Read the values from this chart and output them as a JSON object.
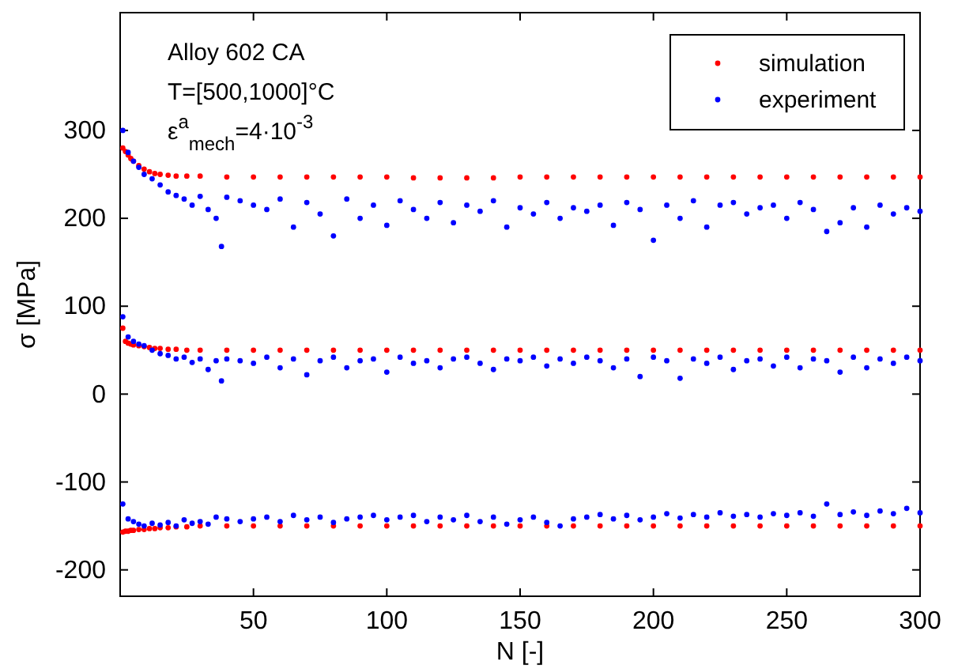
{
  "chart_data": {
    "type": "scatter",
    "xlabel": "N [-]",
    "ylabel": "σ [MPa]",
    "xlim": [
      0,
      300
    ],
    "xticks": [
      50,
      100,
      150,
      200,
      250,
      300
    ],
    "ylim": [
      -230,
      434
    ],
    "yticks": [
      -200,
      -100,
      0,
      100,
      200,
      300
    ],
    "grid": false,
    "legend": "top right",
    "marker": "circle",
    "annotations": [
      "Alloy 602 CA",
      "T=[500,1000]°C",
      "ε$^{a}$$_{mech}$=4·10$^{-3}$"
    ],
    "series": [
      {
        "name": "simulation",
        "color": "#ff0000",
        "x": [
          1,
          2,
          3,
          4,
          5,
          7,
          9,
          11,
          13,
          15,
          18,
          21,
          25,
          30,
          40,
          50,
          60,
          70,
          80,
          90,
          100,
          110,
          120,
          130,
          140,
          150,
          160,
          170,
          180,
          190,
          200,
          210,
          220,
          230,
          240,
          250,
          260,
          270,
          280,
          290,
          300,
          1,
          2,
          3,
          4,
          5,
          7,
          9,
          11,
          13,
          15,
          18,
          21,
          25,
          30,
          40,
          50,
          60,
          70,
          80,
          90,
          100,
          110,
          120,
          130,
          140,
          150,
          160,
          170,
          180,
          190,
          200,
          210,
          220,
          230,
          240,
          250,
          260,
          270,
          280,
          290,
          300,
          1,
          2,
          3,
          4,
          5,
          7,
          9,
          11,
          13,
          15,
          18,
          21,
          25,
          30,
          40,
          50,
          60,
          70,
          80,
          90,
          100,
          110,
          120,
          130,
          140,
          150,
          160,
          170,
          180,
          190,
          200,
          210,
          220,
          230,
          240,
          250,
          260,
          270,
          280,
          290,
          300
        ],
        "values": [
          280,
          276,
          272,
          268,
          265,
          260,
          256,
          253,
          251,
          250,
          249,
          248,
          248,
          248,
          247,
          247,
          247,
          247,
          247,
          247,
          247,
          246,
          246,
          246,
          246,
          247,
          247,
          247,
          247,
          247,
          247,
          247,
          247,
          247,
          247,
          247,
          247,
          247,
          247,
          247,
          247,
          75,
          60,
          58,
          57,
          56,
          55,
          54,
          53,
          52,
          52,
          51,
          51,
          50,
          50,
          50,
          50,
          50,
          50,
          50,
          50,
          50,
          50,
          50,
          50,
          50,
          50,
          50,
          50,
          50,
          50,
          50,
          50,
          50,
          50,
          50,
          50,
          50,
          50,
          50,
          50,
          50,
          -157,
          -156,
          -156,
          -155,
          -155,
          -154,
          -154,
          -153,
          -153,
          -152,
          -152,
          -151,
          -151,
          -150,
          -150,
          -150,
          -150,
          -150,
          -150,
          -150,
          -150,
          -150,
          -150,
          -150,
          -150,
          -150,
          -150,
          -150,
          -150,
          -150,
          -150,
          -150,
          -150,
          -150,
          -150,
          -150,
          -150,
          -150,
          -150,
          -150,
          -150
        ]
      },
      {
        "name": "experiment",
        "color": "#0000ff",
        "x": [
          1,
          3,
          5,
          7,
          9,
          12,
          15,
          18,
          21,
          24,
          27,
          30,
          33,
          36,
          38,
          40,
          45,
          50,
          55,
          60,
          65,
          70,
          75,
          80,
          85,
          90,
          95,
          100,
          105,
          110,
          115,
          120,
          125,
          130,
          135,
          140,
          145,
          150,
          155,
          160,
          165,
          170,
          175,
          180,
          185,
          190,
          195,
          200,
          205,
          210,
          215,
          220,
          225,
          230,
          235,
          240,
          245,
          250,
          255,
          260,
          265,
          270,
          275,
          280,
          285,
          290,
          295,
          300,
          1,
          3,
          5,
          7,
          9,
          12,
          15,
          18,
          21,
          24,
          27,
          30,
          33,
          36,
          38,
          40,
          45,
          50,
          55,
          60,
          65,
          70,
          75,
          80,
          85,
          90,
          95,
          100,
          105,
          110,
          115,
          120,
          125,
          130,
          135,
          140,
          145,
          150,
          155,
          160,
          165,
          170,
          175,
          180,
          185,
          190,
          195,
          200,
          205,
          210,
          215,
          220,
          225,
          230,
          235,
          240,
          245,
          250,
          255,
          260,
          265,
          270,
          275,
          280,
          285,
          290,
          295,
          300,
          1,
          3,
          5,
          7,
          9,
          12,
          15,
          18,
          21,
          24,
          27,
          30,
          33,
          36,
          40,
          45,
          50,
          55,
          60,
          65,
          70,
          75,
          80,
          85,
          90,
          95,
          100,
          105,
          110,
          115,
          120,
          125,
          130,
          135,
          140,
          145,
          150,
          155,
          160,
          165,
          170,
          175,
          180,
          185,
          190,
          195,
          200,
          205,
          210,
          215,
          220,
          225,
          230,
          235,
          240,
          245,
          250,
          255,
          260,
          265,
          270,
          275,
          280,
          285,
          290,
          295,
          300
        ],
        "values": [
          300,
          275,
          265,
          258,
          250,
          245,
          238,
          230,
          226,
          222,
          215,
          225,
          210,
          200,
          168,
          224,
          220,
          215,
          210,
          222,
          190,
          218,
          205,
          180,
          222,
          200,
          215,
          192,
          220,
          210,
          200,
          218,
          195,
          215,
          208,
          220,
          190,
          212,
          205,
          218,
          200,
          212,
          208,
          215,
          192,
          218,
          210,
          175,
          215,
          200,
          220,
          190,
          215,
          218,
          205,
          212,
          215,
          200,
          218,
          210,
          185,
          195,
          212,
          190,
          215,
          205,
          212,
          208,
          88,
          65,
          60,
          57,
          55,
          50,
          46,
          44,
          40,
          42,
          36,
          40,
          28,
          38,
          15,
          40,
          38,
          35,
          42,
          30,
          40,
          22,
          38,
          42,
          30,
          38,
          40,
          25,
          42,
          35,
          38,
          30,
          40,
          42,
          35,
          28,
          40,
          38,
          42,
          32,
          40,
          35,
          42,
          38,
          30,
          40,
          20,
          42,
          38,
          18,
          40,
          35,
          42,
          28,
          38,
          40,
          32,
          42,
          30,
          40,
          38,
          25,
          42,
          30,
          40,
          35,
          42,
          38,
          -125,
          -142,
          -145,
          -148,
          -150,
          -147,
          -149,
          -146,
          -150,
          -143,
          -147,
          -145,
          -148,
          -140,
          -142,
          -145,
          -142,
          -140,
          -145,
          -138,
          -143,
          -140,
          -146,
          -142,
          -140,
          -138,
          -143,
          -140,
          -138,
          -145,
          -140,
          -143,
          -138,
          -145,
          -140,
          -148,
          -143,
          -140,
          -146,
          -150,
          -142,
          -140,
          -137,
          -142,
          -138,
          -143,
          -140,
          -136,
          -141,
          -137,
          -140,
          -135,
          -139,
          -137,
          -140,
          -136,
          -138,
          -135,
          -139,
          -125,
          -137,
          -134,
          -138,
          -133,
          -136,
          -130,
          -135
        ]
      }
    ]
  }
}
